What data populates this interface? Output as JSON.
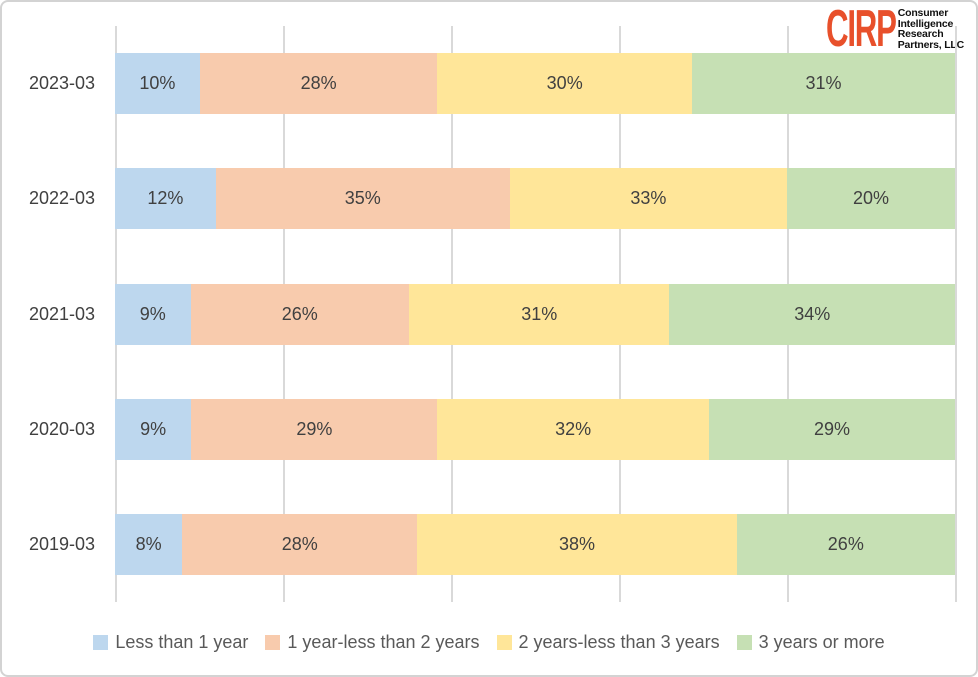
{
  "logo": {
    "brand": "CIRP",
    "brand_color": "#E8502B",
    "lines": [
      "Consumer",
      "Intelligence",
      "Research",
      "Partners, LLC"
    ]
  },
  "chart_data": {
    "type": "bar",
    "orientation": "horizontal",
    "stacked_100_percent": true,
    "categories": [
      "2023-03",
      "2022-03",
      "2021-03",
      "2020-03",
      "2019-03"
    ],
    "series": [
      {
        "name": "Less than 1 year",
        "color": "#BDD7EE",
        "values": [
          10,
          12,
          9,
          9,
          8
        ]
      },
      {
        "name": "1 year-less than 2 years",
        "color": "#F8CBAD",
        "values": [
          28,
          35,
          26,
          29,
          28
        ]
      },
      {
        "name": "2 years-less than 3 years",
        "color": "#FFE699",
        "values": [
          30,
          33,
          31,
          32,
          38
        ]
      },
      {
        "name": "3 years or more",
        "color": "#C6E0B4",
        "values": [
          31,
          20,
          34,
          29,
          26
        ]
      }
    ],
    "value_suffix": "%",
    "xlim": [
      0,
      100
    ],
    "gridlines_percent": [
      0,
      20,
      40,
      60,
      80,
      100
    ],
    "grid_on": true,
    "legend_position": "bottom",
    "title": ""
  },
  "colors": {
    "gridline": "#D9D9D9",
    "axis_label_text": "#404040",
    "data_label_text": "#404040",
    "legend_text": "#595959",
    "canvas_border": "#D3D3D3"
  }
}
